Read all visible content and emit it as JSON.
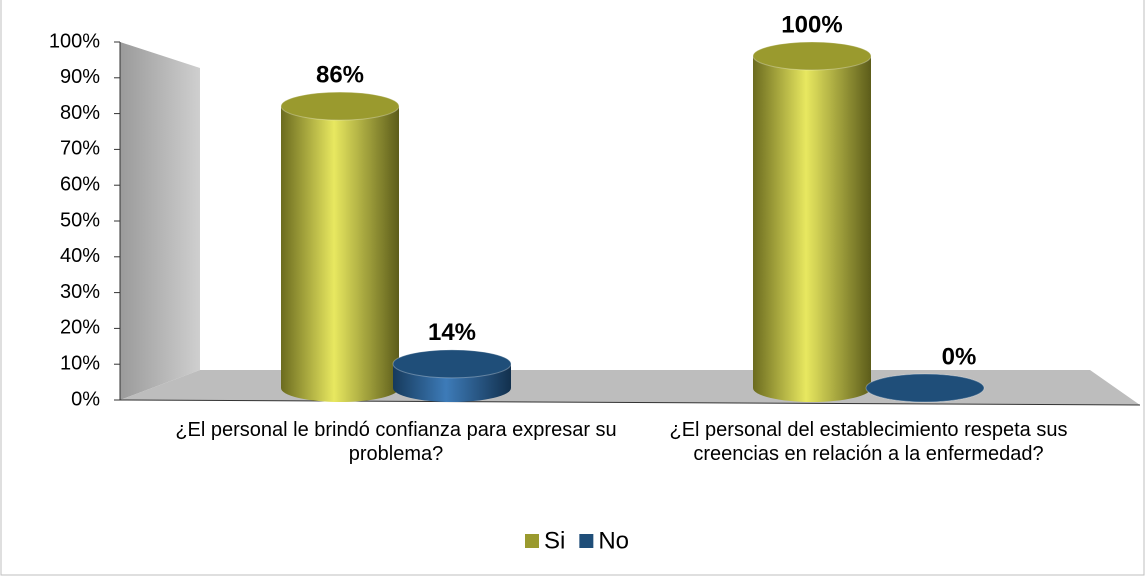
{
  "chart_data": {
    "type": "bar3d",
    "categories": [
      "¿El personal le brindó confianza para expresar su problema?",
      "¿El personal del establecimiento respeta sus creencias en relación a la enfermedad?"
    ],
    "series": [
      {
        "name": "Si",
        "color": "#9a9a2e",
        "values": [
          86,
          100
        ],
        "value_labels": [
          "86%",
          "100%"
        ]
      },
      {
        "name": "No",
        "color": "#1f4e79",
        "values": [
          14,
          0
        ],
        "value_labels": [
          "14%",
          "0%"
        ]
      }
    ],
    "ylim": [
      0,
      100
    ],
    "yticks": [
      {
        "value": 0,
        "label": "0%"
      },
      {
        "value": 10,
        "label": "10%"
      },
      {
        "value": 20,
        "label": "20%"
      },
      {
        "value": 30,
        "label": "30%"
      },
      {
        "value": 40,
        "label": "40%"
      },
      {
        "value": 50,
        "label": "50%"
      },
      {
        "value": 60,
        "label": "60%"
      },
      {
        "value": 70,
        "label": "70%"
      },
      {
        "value": 80,
        "label": "80%"
      },
      {
        "value": 90,
        "label": "90%"
      },
      {
        "value": 100,
        "label": "100%"
      }
    ],
    "legend": "bottom"
  }
}
